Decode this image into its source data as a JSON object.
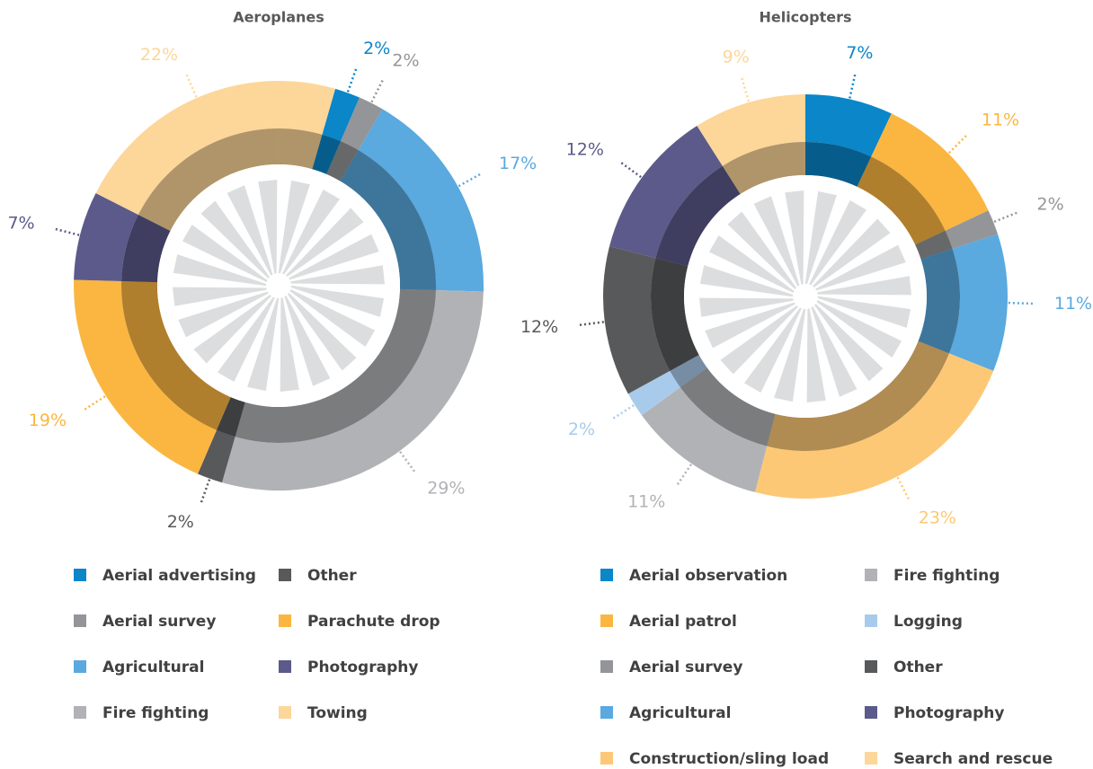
{
  "chart_data": [
    {
      "type": "donut",
      "title": "Aeroplanes",
      "categories": [
        "Aerial advertising",
        "Aerial survey",
        "Agricultural",
        "Fire fighting",
        "Other",
        "Parachute drop",
        "Photography",
        "Towing"
      ],
      "values": [
        2,
        2,
        17,
        29,
        2,
        19,
        7,
        22
      ],
      "value_labels": [
        "2%",
        "2%",
        "17%",
        "29%",
        "2%",
        "19%",
        "7%",
        "22%"
      ],
      "colors": [
        "#0a86c9",
        "#939598",
        "#5aa9df",
        "#b1b2b5",
        "#58595b",
        "#fbb641",
        "#5b5a8a",
        "#fdd699"
      ]
    },
    {
      "type": "donut",
      "title": "Helicopters",
      "categories": [
        "Aerial observation",
        "Aerial patrol",
        "Aerial survey",
        "Agricultural",
        "Construction/sling load",
        "Fire fighting",
        "Logging",
        "Other",
        "Photography",
        "Search and rescue"
      ],
      "values": [
        7,
        11,
        2,
        11,
        23,
        11,
        2,
        12,
        12,
        9
      ],
      "value_labels": [
        "7%",
        "11%",
        "2%",
        "11%",
        "23%",
        "11%",
        "2%",
        "12%",
        "12%",
        "9%"
      ],
      "colors": [
        "#0a86c9",
        "#fbb641",
        "#939598",
        "#5aa9df",
        "#fdc876",
        "#b1b2b5",
        "#a9cbeb",
        "#58595b",
        "#5b5a8a",
        "#fdd699"
      ]
    }
  ]
}
